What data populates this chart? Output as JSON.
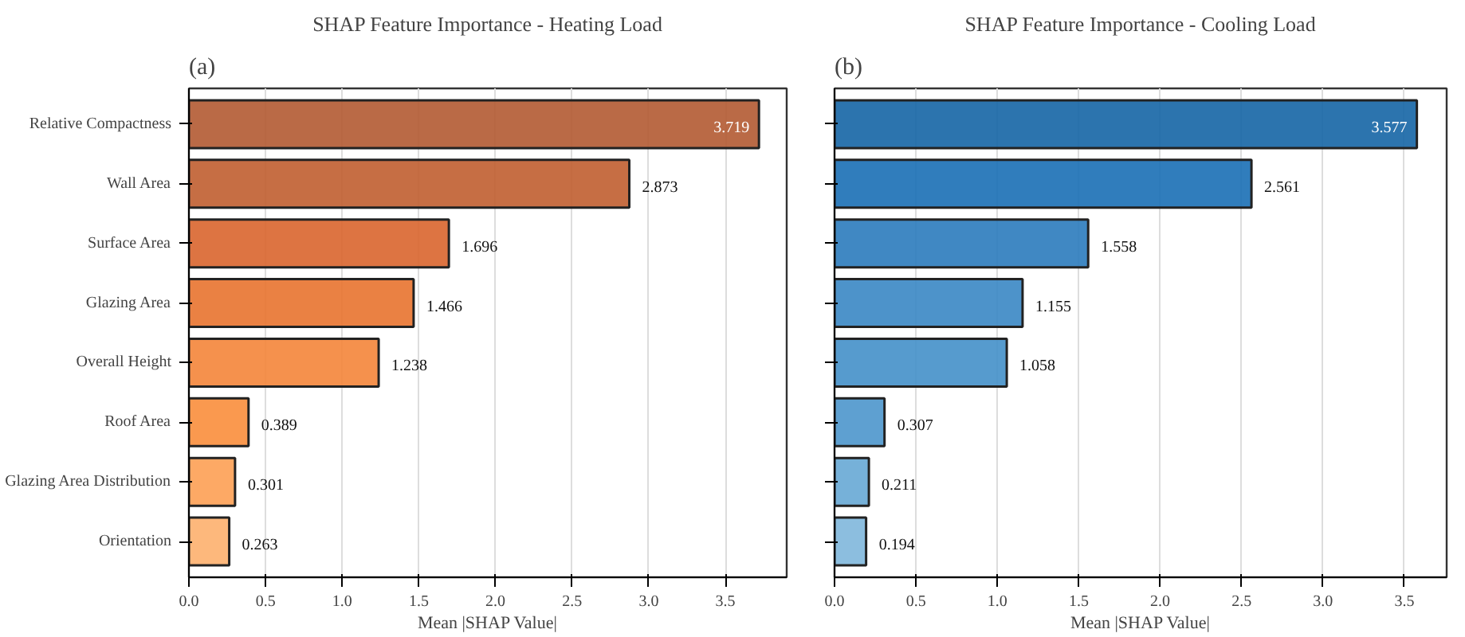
{
  "chart_data": [
    {
      "type": "bar",
      "orientation": "horizontal",
      "title": "SHAP Feature Importance - Heating Load",
      "xlabel": "Mean |SHAP Value|",
      "annotations": [
        "(a)"
      ],
      "categories": [
        "Relative Compactness",
        "Wall Area",
        "Surface Area",
        "Glazing Area",
        "Overall Height",
        "Roof Area",
        "Glazing Area Distribution",
        "Orientation"
      ],
      "values": [
        3.719,
        2.873,
        1.696,
        1.466,
        1.238,
        0.389,
        0.301,
        0.263
      ],
      "colors": [
        "#b35a32",
        "#c05e30",
        "#d9652e",
        "#e8732f",
        "#f4853a",
        "#fa8e3c",
        "#fda054",
        "#fdb06e"
      ],
      "xlim": [
        0,
        3.9
      ],
      "xticks": [
        {
          "value": 0,
          "label": "0.0"
        },
        0.5,
        {
          "value": 1,
          "label": "1.0"
        },
        1.5,
        {
          "value": 2,
          "label": "2.0"
        },
        2.5,
        {
          "value": 3,
          "label": "3.0"
        },
        3.5
      ],
      "grid": "x",
      "data_labels": true
    },
    {
      "type": "bar",
      "orientation": "horizontal",
      "title": "SHAP Feature Importance - Cooling Load",
      "xlabel": "Mean |SHAP Value|",
      "annotations": [
        "(b)"
      ],
      "categories": [
        null,
        null,
        null,
        null,
        null,
        null,
        null,
        null
      ],
      "values": [
        3.577,
        2.561,
        1.558,
        1.155,
        1.058,
        0.307,
        0.211,
        0.194
      ],
      "colors": [
        "#1565a5",
        "#1a6fb5",
        "#2b7bbd",
        "#3a87c4",
        "#4490c9",
        "#4d96cc",
        "#67a8d5",
        "#7fb7dc"
      ],
      "xlim": [
        0,
        3.76
      ],
      "xticks": [
        {
          "value": 0,
          "label": "0.0"
        },
        0.5,
        {
          "value": 1,
          "label": "1.0"
        },
        1.5,
        {
          "value": 2,
          "label": "2.0"
        },
        2.5,
        {
          "value": 3,
          "label": "3.0"
        },
        3.5
      ],
      "grid": "x",
      "data_labels": true,
      "tick_labels": "x"
    }
  ]
}
